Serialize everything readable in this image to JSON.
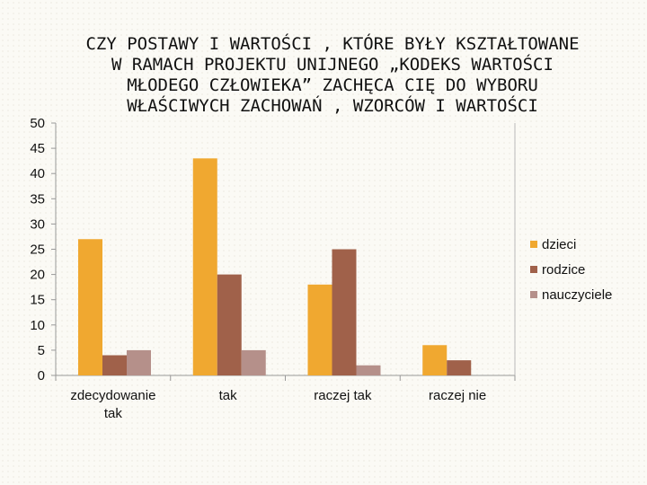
{
  "chart_data": {
    "type": "bar",
    "title": "CZY POSTAWY I WARTOŚCI , KTÓRE BYŁY KSZTAŁTOWANE W RAMACH PROJEKTU UNIJNEGO „KODEKS WARTOŚCI MŁODEGO CZŁOWIEKA” ZACHĘCA CIĘ DO WYBORU WŁAŚCIWYCH ZACHOWAŃ , WZORCÓW I WARTOŚCI",
    "title_lines": [
      "CZY POSTAWY I WARTOŚCI , KTÓRE BYŁY KSZTAŁTOWANE",
      "W RAMACH PROJEKTU UNIJNEGO „KODEKS WARTOŚCI",
      "MŁODEGO CZŁOWIEKA” ZACHĘCA CIĘ DO WYBORU",
      "WŁAŚCIWYCH ZACHOWAŃ , WZORCÓW I WARTOŚCI"
    ],
    "categories": [
      "zdecydowanie tak",
      "tak",
      "raczej tak",
      "raczej nie"
    ],
    "category_label_lines": [
      [
        "zdecydowanie",
        "tak"
      ],
      [
        "tak"
      ],
      [
        "raczej tak"
      ],
      [
        "raczej nie"
      ]
    ],
    "series": [
      {
        "name": "dzieci",
        "values": [
          27,
          43,
          18,
          6
        ],
        "color": "#f0a830"
      },
      {
        "name": "rodzice",
        "values": [
          4,
          20,
          25,
          3
        ],
        "color": "#a0614a"
      },
      {
        "name": "nauczyciele",
        "values": [
          5,
          5,
          2,
          0
        ],
        "color": "#b5908a"
      }
    ],
    "ylim": [
      0,
      50
    ],
    "yticks": [
      0,
      5,
      10,
      15,
      20,
      25,
      30,
      35,
      40,
      45,
      50
    ],
    "xlabel": "",
    "ylabel": "",
    "grid": false,
    "legend_position": "right"
  }
}
